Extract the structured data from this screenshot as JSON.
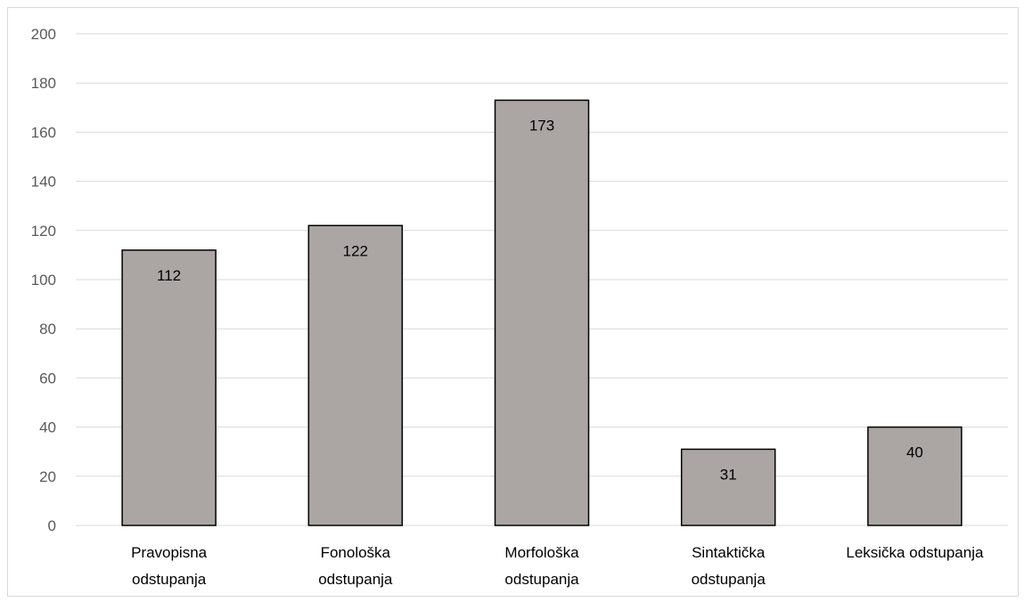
{
  "chart_data": {
    "type": "bar",
    "categories": [
      [
        "Pravopisna",
        "odstupanja"
      ],
      [
        "Fonološka",
        "odstupanja"
      ],
      [
        "Morfološka",
        "odstupanja"
      ],
      [
        "Sintaktička",
        "odstupanja"
      ],
      [
        "Leksička odstupanja"
      ]
    ],
    "values": [
      112,
      122,
      173,
      31,
      40
    ],
    "data_labels": [
      "112",
      "122",
      "173",
      "31",
      "40"
    ],
    "ylim": [
      0,
      200
    ],
    "y_ticks": [
      "0",
      "20",
      "40",
      "60",
      "80",
      "100",
      "120",
      "140",
      "160",
      "180",
      "200"
    ],
    "grid": true,
    "colors": {
      "bar_fill": "#aba6a4",
      "bar_stroke": "#000000",
      "grid": "#d9d9d9"
    }
  }
}
